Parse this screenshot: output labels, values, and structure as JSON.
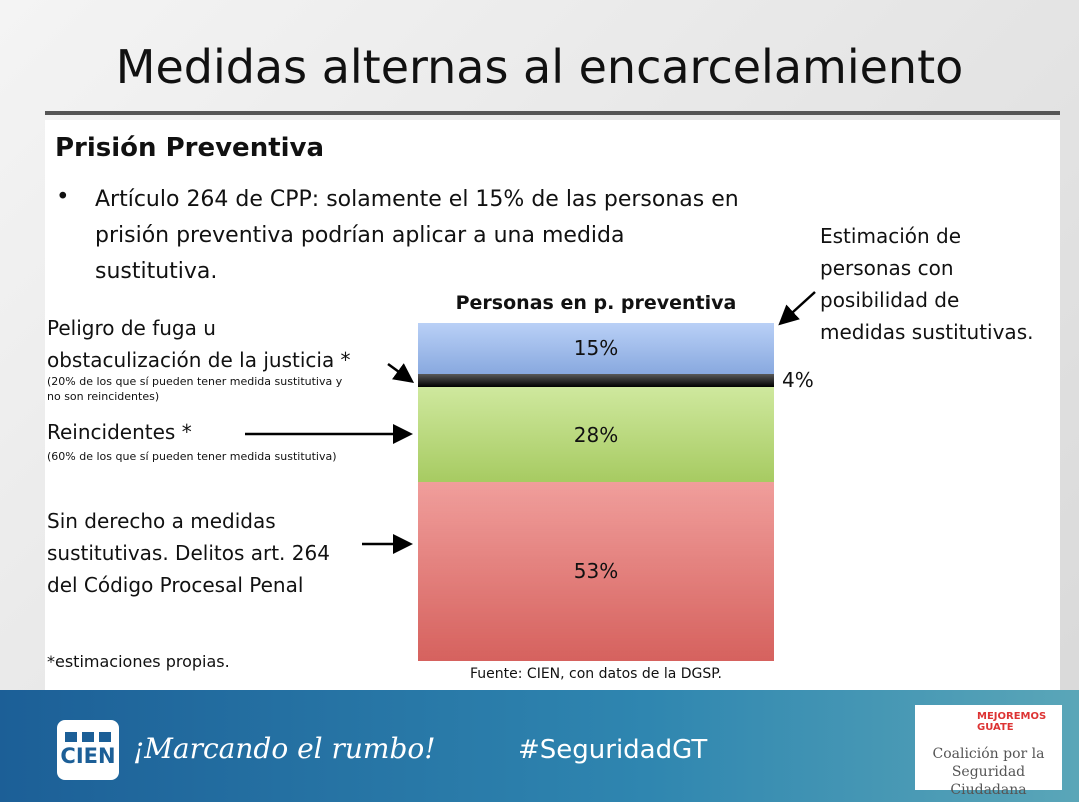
{
  "title": "Medidas alternas al encarcelamiento",
  "heading": "Prisión Preventiva",
  "bullet": "Artículo 264 de CPP: solamente el 15% de las personas en\nprisión preventiva podrían aplicar a una medida\nsustitutiva.",
  "chart_data": {
    "type": "stacked-bar",
    "title": "Personas en p. preventiva",
    "categories": [
      null
    ],
    "series": [
      {
        "name": "Sin derecho a medidas\nsustitutivas. Delitos art. 264\ndel Código Procesal Penal",
        "color": "#e86a66",
        "values": [
          53
        ],
        "value_labels": [
          "53%"
        ]
      },
      {
        "name": "Reincidentes *",
        "note": "(60% de los que sí pueden tener medida sustitutiva)",
        "color": "#b5dc6a",
        "values": [
          28
        ],
        "value_labels": [
          "28%"
        ]
      },
      {
        "name": "Peligro de fuga u\nobstaculización de la justicia *",
        "note": "(20% de los que sí pueden tener medida sustitutiva y\nno son reincidentes)",
        "color": "#000000",
        "values": [
          4
        ],
        "value_labels": [
          "4%"
        ]
      },
      {
        "name": "Estimación de\npersonas con\nposibilidad de\nmedidas sustitutivas.",
        "color": "#94b7f2",
        "values": [
          15
        ],
        "value_labels": [
          "15%"
        ]
      }
    ],
    "footnote": "*estimaciones propias.",
    "source": "Fuente: CIEN, con datos de la DGSP."
  },
  "footer": {
    "logo_left": "CIEN",
    "tagline": "¡Marcando el rumbo!",
    "hashtag": "#SeguridadGT",
    "logo_right_top": "MEJOREMOS\nGUATE",
    "logo_right_bottom": "Coalición por la\nSeguridad Ciudadana"
  }
}
